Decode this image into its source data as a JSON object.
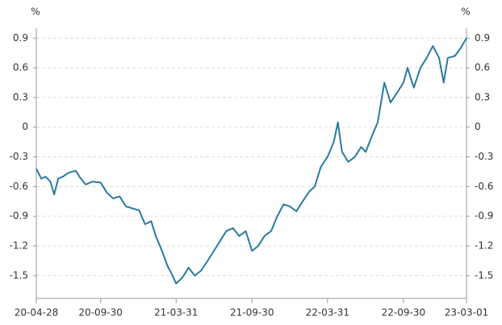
{
  "chart_data": {
    "type": "line",
    "y_label": "%",
    "y2_label": "%",
    "x": [
      "20-04-28",
      "20-05-10",
      "20-05-20",
      "20-06-01",
      "20-06-10",
      "20-06-20",
      "20-07-01",
      "20-07-15",
      "20-08-01",
      "20-08-10",
      "20-08-25",
      "20-09-10",
      "20-09-30",
      "20-10-15",
      "20-10-30",
      "20-11-15",
      "20-11-30",
      "20-12-15",
      "21-01-01",
      "21-01-15",
      "21-01-30",
      "21-02-10",
      "21-02-25",
      "21-03-10",
      "21-03-20",
      "21-03-31",
      "21-04-15",
      "21-04-30",
      "21-05-15",
      "21-05-30",
      "21-06-15",
      "21-06-30",
      "21-07-15",
      "21-07-30",
      "21-08-15",
      "21-08-30",
      "21-09-15",
      "21-09-30",
      "21-10-15",
      "21-10-30",
      "21-11-15",
      "21-11-30",
      "21-12-15",
      "21-12-30",
      "22-01-15",
      "22-01-30",
      "22-02-15",
      "22-02-28",
      "22-03-15",
      "22-03-31",
      "22-04-15",
      "22-04-25",
      "22-05-05",
      "22-05-20",
      "22-06-05",
      "22-06-20",
      "22-07-01",
      "22-07-15",
      "22-07-30",
      "22-08-15",
      "22-08-30",
      "22-09-15",
      "22-09-30",
      "22-10-10",
      "22-10-25",
      "22-11-10",
      "22-11-25",
      "22-12-10",
      "22-12-25",
      "23-01-05",
      "23-01-15",
      "23-02-01",
      "23-02-15",
      "23-03-01"
    ],
    "series": [
      {
        "color": "#2a7aa0",
        "values": [
          -0.42,
          -0.52,
          -0.5,
          -0.55,
          -0.68,
          -0.52,
          -0.5,
          -0.46,
          -0.44,
          -0.5,
          -0.58,
          -0.55,
          -0.56,
          -0.66,
          -0.72,
          -0.7,
          -0.8,
          -0.82,
          -0.84,
          -0.98,
          -0.95,
          -1.1,
          -1.25,
          -1.4,
          -1.48,
          -1.58,
          -1.52,
          -1.42,
          -1.5,
          -1.45,
          -1.35,
          -1.25,
          -1.15,
          -1.05,
          -1.02,
          -1.1,
          -1.05,
          -1.25,
          -1.2,
          -1.1,
          -1.05,
          -0.9,
          -0.78,
          -0.8,
          -0.85,
          -0.75,
          -0.65,
          -0.6,
          -0.4,
          -0.3,
          -0.15,
          0.05,
          -0.25,
          -0.35,
          -0.3,
          -0.2,
          -0.25,
          -0.1,
          0.05,
          0.45,
          0.25,
          0.35,
          0.45,
          0.6,
          0.4,
          0.6,
          0.7,
          0.82,
          0.7,
          0.45,
          0.7,
          0.72,
          0.8,
          0.9
        ]
      }
    ],
    "xlim": [
      "20-04-28",
      "23-03-01"
    ],
    "xticks": [
      "20-04-28",
      "20-09-30",
      "21-03-31",
      "21-09-30",
      "22-03-31",
      "22-09-30",
      "23-03-01"
    ],
    "ylim": [
      -1.73,
      1.0
    ],
    "yticks": [
      -1.5,
      -1.2,
      -0.9,
      -0.6,
      -0.3,
      0,
      0.3,
      0.6,
      0.9
    ],
    "y2lim": [
      -1.73,
      1.0
    ],
    "y2ticks": [
      -1.5,
      -1.2,
      -0.9,
      -0.6,
      -0.3,
      0,
      0.3,
      0.6,
      0.9
    ],
    "grid": true
  }
}
